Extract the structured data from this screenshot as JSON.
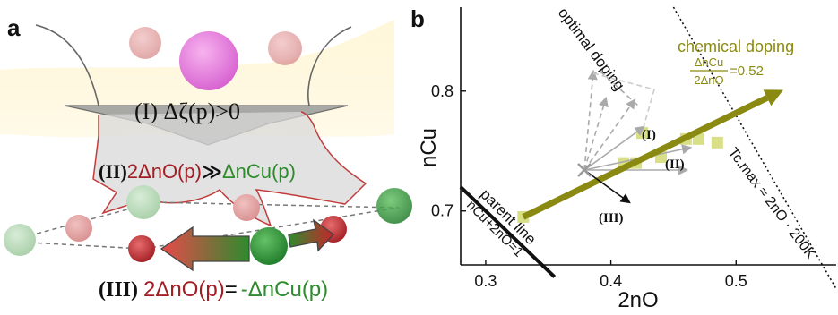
{
  "panel_a": {
    "label": "a",
    "step1_text": "(I) Δζ(p)>0",
    "step2": {
      "prefix": "(II)",
      "left": "2ΔnO(p)",
      "rel": "≫",
      "right": "ΔnCu(p)"
    },
    "step3": {
      "prefix": "(III)",
      "left": "2ΔnO(p)",
      "eq": "=",
      "right": "-ΔnCu(p)"
    }
  },
  "panel_b": {
    "label": "b",
    "xlabel": "2nO",
    "ylabel": "nCu",
    "x_ticks": [
      "0.3",
      "0.4",
      "0.5"
    ],
    "y_ticks": [
      "0.7",
      "0.8"
    ],
    "optimal_doping_label": "optimal doping",
    "chemical_doping_label": "chemical doping",
    "ratio_label": {
      "num": "ΔnCu",
      "den": "2ΔnO",
      "value": "=0.52"
    },
    "parent_line_label": "parent line",
    "parent_line_eq": "nCu+2nO=1",
    "tc_label": "Tc,max ≈ 2nO · 200K",
    "vector_labels": [
      "(I)",
      "(II)",
      "(III)"
    ],
    "colors": {
      "olive": "#8a8a12",
      "squares": "#d9df86",
      "green": "#2e8b2e",
      "red": "#b22222"
    }
  },
  "chart_data": {
    "type": "scatter",
    "xlabel": "2nO",
    "ylabel": "nCu",
    "xlim": [
      0.28,
      0.58
    ],
    "ylim": [
      0.655,
      0.87
    ],
    "series": [
      {
        "points": [
          [
            0.33,
            0.695
          ],
          [
            0.41,
            0.74
          ],
          [
            0.42,
            0.74
          ],
          [
            0.425,
            0.765
          ],
          [
            0.44,
            0.745
          ],
          [
            0.46,
            0.76
          ],
          [
            0.47,
            0.76
          ],
          [
            0.485,
            0.757
          ]
        ]
      }
    ],
    "lines": [
      {
        "from": [
          0.33,
          0.695
        ],
        "to": [
          0.53,
          0.797
        ]
      },
      {
        "from": [
          0.28,
          0.72
        ],
        "to": [
          0.355,
          0.645
        ]
      },
      {
        "from": [
          0.45,
          0.87
        ],
        "to": [
          0.58,
          0.635
        ]
      }
    ]
  }
}
